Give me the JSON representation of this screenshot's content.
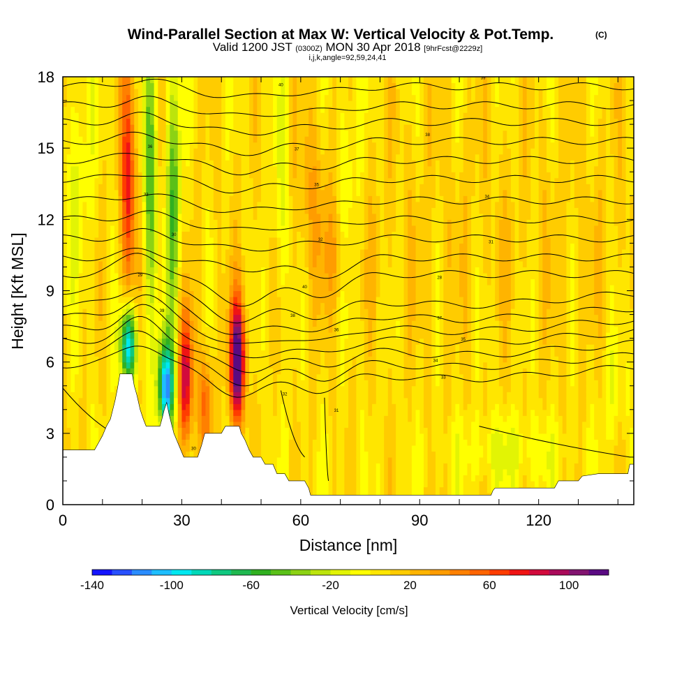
{
  "title": "Wind-Parallel Section at Max W: Vertical Velocity & Pot.Temp.",
  "title_mark": "(C)",
  "subtitle": {
    "valid": "Valid 1200 JST",
    "zulu": "(0300Z)",
    "date": "MON 30 Apr 2018",
    "forecast": "[9hrFcst@2229z]"
  },
  "indices_line": "i,j,k,angle=92,59,24,41",
  "chart_data": {
    "type": "heatmap",
    "xlabel": "Distance [nm]",
    "ylabel": "Height [Kft MSL]",
    "xlim": [
      0,
      144
    ],
    "ylim": [
      0,
      18
    ],
    "x_ticks": [
      0,
      30,
      60,
      90,
      120
    ],
    "y_ticks": [
      0,
      3,
      6,
      9,
      12,
      15,
      18
    ],
    "colorbar": {
      "label": "Vertical Velocity [cm/s]",
      "min": -140,
      "max": 120,
      "step": 10,
      "tick_values": [
        -140,
        -100,
        -60,
        -20,
        20,
        60,
        100
      ],
      "tick_labels": [
        "-140",
        "-100",
        "-60",
        "-20",
        "20",
        "60",
        "100"
      ],
      "colors": [
        "#1414ff",
        "#2850ff",
        "#2a8cff",
        "#1ebeff",
        "#00e8f0",
        "#00d8b8",
        "#10c880",
        "#20b850",
        "#30b020",
        "#5ac018",
        "#8cd214",
        "#bce40c",
        "#e2f404",
        "#ffff00",
        "#ffe600",
        "#ffcc00",
        "#ffb400",
        "#ff9c00",
        "#ff8000",
        "#ff6400",
        "#ff3c00",
        "#f01414",
        "#d20a3c",
        "#aa0a5a",
        "#821470",
        "#5a0a82"
      ]
    },
    "contour_labels": [
      "40",
      "39",
      "38",
      "37",
      "36",
      "35",
      "34",
      "33",
      "32",
      "31",
      "30",
      "29",
      "28"
    ],
    "features": [
      {
        "kind": "updraft",
        "x": 16.5,
        "y_range": [
          9.5,
          17.5
        ],
        "peak": 70
      },
      {
        "kind": "downdraft",
        "x": 22.0,
        "y_range": [
          9.0,
          18.0
        ],
        "peak": -55
      },
      {
        "kind": "downdraft",
        "x": 28.0,
        "y_range": [
          8.5,
          17.0
        ],
        "peak": -60
      },
      {
        "kind": "downdraft",
        "x": 26.0,
        "y_range": [
          3.5,
          6.5
        ],
        "peak": -120
      },
      {
        "kind": "downdraft",
        "x": 16.5,
        "y_range": [
          5.5,
          8.0
        ],
        "peak": -110
      },
      {
        "kind": "updraft",
        "x": 31.0,
        "y_range": [
          3.0,
          7.5
        ],
        "peak": 85
      },
      {
        "kind": "updraft",
        "x": 44.0,
        "y_range": [
          4.0,
          8.0
        ],
        "peak": 120
      },
      {
        "kind": "updraft",
        "x": 36.0,
        "y_range": [
          2.5,
          6.0
        ],
        "peak": 50
      }
    ]
  }
}
